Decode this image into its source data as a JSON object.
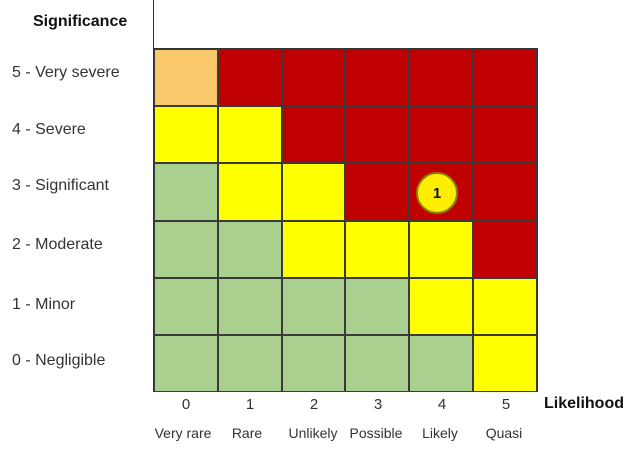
{
  "y_axis_title": "Significance",
  "x_axis_title": "Likelihood",
  "rows": [
    {
      "label": "5 - Very severe"
    },
    {
      "label": "4 - Severe"
    },
    {
      "label": "3 - Significant"
    },
    {
      "label": "2 - Moderate"
    },
    {
      "label": "1 - Minor"
    },
    {
      "label": "0 - Negligible"
    }
  ],
  "columns": [
    {
      "number": "0",
      "word": "Very rare"
    },
    {
      "number": "1",
      "word": "Rare"
    },
    {
      "number": "2",
      "word": "Unlikely"
    },
    {
      "number": "3",
      "word": "Possible"
    },
    {
      "number": "4",
      "word": "Likely"
    },
    {
      "number": "5",
      "word": "Quasi"
    }
  ],
  "colors": {
    "red": "#c00000",
    "yellow": "#ffff00",
    "green": "#a9d08e",
    "orange": "#f9c86b"
  },
  "matrix": [
    [
      "orange",
      "red",
      "red",
      "red",
      "red",
      "red"
    ],
    [
      "yellow",
      "yellow",
      "red",
      "red",
      "red",
      "red"
    ],
    [
      "green",
      "yellow",
      "yellow",
      "red",
      "red",
      "red"
    ],
    [
      "green",
      "green",
      "yellow",
      "yellow",
      "yellow",
      "red"
    ],
    [
      "green",
      "green",
      "green",
      "green",
      "yellow",
      "yellow"
    ],
    [
      "green",
      "green",
      "green",
      "green",
      "green",
      "yellow"
    ]
  ],
  "marker": {
    "label": "1",
    "significance": "3",
    "likelihood": "4"
  }
}
